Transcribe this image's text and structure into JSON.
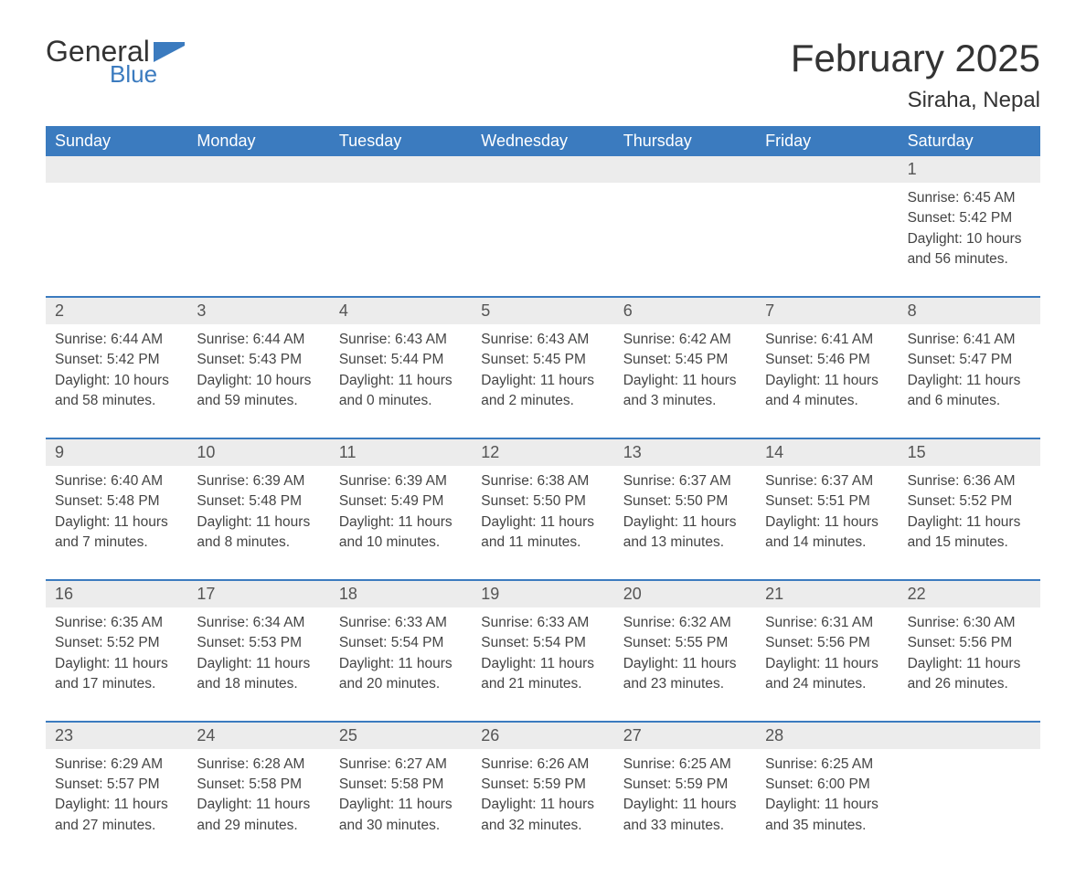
{
  "logo": {
    "word1": "General",
    "word2": "Blue",
    "accent_color": "#3b7bbf"
  },
  "title": "February 2025",
  "location": "Siraha, Nepal",
  "colors": {
    "header_bg": "#3b7bbf",
    "header_text": "#ffffff",
    "band_bg": "#ececec",
    "rule": "#3b7bbf",
    "body_text": "#444444",
    "daynum_text": "#555555",
    "page_bg": "#ffffff"
  },
  "typography": {
    "month_title_fontsize": 42,
    "location_fontsize": 24,
    "weekday_fontsize": 18,
    "daynum_fontsize": 18,
    "cell_fontsize": 15.5
  },
  "calendar": {
    "type": "table",
    "columns": [
      "Sunday",
      "Monday",
      "Tuesday",
      "Wednesday",
      "Thursday",
      "Friday",
      "Saturday"
    ],
    "weeks": [
      [
        null,
        null,
        null,
        null,
        null,
        null,
        {
          "n": "1",
          "sunrise": "6:45 AM",
          "sunset": "5:42 PM",
          "daylight": "10 hours and 56 minutes."
        }
      ],
      [
        {
          "n": "2",
          "sunrise": "6:44 AM",
          "sunset": "5:42 PM",
          "daylight": "10 hours and 58 minutes."
        },
        {
          "n": "3",
          "sunrise": "6:44 AM",
          "sunset": "5:43 PM",
          "daylight": "10 hours and 59 minutes."
        },
        {
          "n": "4",
          "sunrise": "6:43 AM",
          "sunset": "5:44 PM",
          "daylight": "11 hours and 0 minutes."
        },
        {
          "n": "5",
          "sunrise": "6:43 AM",
          "sunset": "5:45 PM",
          "daylight": "11 hours and 2 minutes."
        },
        {
          "n": "6",
          "sunrise": "6:42 AM",
          "sunset": "5:45 PM",
          "daylight": "11 hours and 3 minutes."
        },
        {
          "n": "7",
          "sunrise": "6:41 AM",
          "sunset": "5:46 PM",
          "daylight": "11 hours and 4 minutes."
        },
        {
          "n": "8",
          "sunrise": "6:41 AM",
          "sunset": "5:47 PM",
          "daylight": "11 hours and 6 minutes."
        }
      ],
      [
        {
          "n": "9",
          "sunrise": "6:40 AM",
          "sunset": "5:48 PM",
          "daylight": "11 hours and 7 minutes."
        },
        {
          "n": "10",
          "sunrise": "6:39 AM",
          "sunset": "5:48 PM",
          "daylight": "11 hours and 8 minutes."
        },
        {
          "n": "11",
          "sunrise": "6:39 AM",
          "sunset": "5:49 PM",
          "daylight": "11 hours and 10 minutes."
        },
        {
          "n": "12",
          "sunrise": "6:38 AM",
          "sunset": "5:50 PM",
          "daylight": "11 hours and 11 minutes."
        },
        {
          "n": "13",
          "sunrise": "6:37 AM",
          "sunset": "5:50 PM",
          "daylight": "11 hours and 13 minutes."
        },
        {
          "n": "14",
          "sunrise": "6:37 AM",
          "sunset": "5:51 PM",
          "daylight": "11 hours and 14 minutes."
        },
        {
          "n": "15",
          "sunrise": "6:36 AM",
          "sunset": "5:52 PM",
          "daylight": "11 hours and 15 minutes."
        }
      ],
      [
        {
          "n": "16",
          "sunrise": "6:35 AM",
          "sunset": "5:52 PM",
          "daylight": "11 hours and 17 minutes."
        },
        {
          "n": "17",
          "sunrise": "6:34 AM",
          "sunset": "5:53 PM",
          "daylight": "11 hours and 18 minutes."
        },
        {
          "n": "18",
          "sunrise": "6:33 AM",
          "sunset": "5:54 PM",
          "daylight": "11 hours and 20 minutes."
        },
        {
          "n": "19",
          "sunrise": "6:33 AM",
          "sunset": "5:54 PM",
          "daylight": "11 hours and 21 minutes."
        },
        {
          "n": "20",
          "sunrise": "6:32 AM",
          "sunset": "5:55 PM",
          "daylight": "11 hours and 23 minutes."
        },
        {
          "n": "21",
          "sunrise": "6:31 AM",
          "sunset": "5:56 PM",
          "daylight": "11 hours and 24 minutes."
        },
        {
          "n": "22",
          "sunrise": "6:30 AM",
          "sunset": "5:56 PM",
          "daylight": "11 hours and 26 minutes."
        }
      ],
      [
        {
          "n": "23",
          "sunrise": "6:29 AM",
          "sunset": "5:57 PM",
          "daylight": "11 hours and 27 minutes."
        },
        {
          "n": "24",
          "sunrise": "6:28 AM",
          "sunset": "5:58 PM",
          "daylight": "11 hours and 29 minutes."
        },
        {
          "n": "25",
          "sunrise": "6:27 AM",
          "sunset": "5:58 PM",
          "daylight": "11 hours and 30 minutes."
        },
        {
          "n": "26",
          "sunrise": "6:26 AM",
          "sunset": "5:59 PM",
          "daylight": "11 hours and 32 minutes."
        },
        {
          "n": "27",
          "sunrise": "6:25 AM",
          "sunset": "5:59 PM",
          "daylight": "11 hours and 33 minutes."
        },
        {
          "n": "28",
          "sunrise": "6:25 AM",
          "sunset": "6:00 PM",
          "daylight": "11 hours and 35 minutes."
        },
        null
      ]
    ],
    "labels": {
      "sunrise": "Sunrise: ",
      "sunset": "Sunset: ",
      "daylight": "Daylight: "
    }
  }
}
